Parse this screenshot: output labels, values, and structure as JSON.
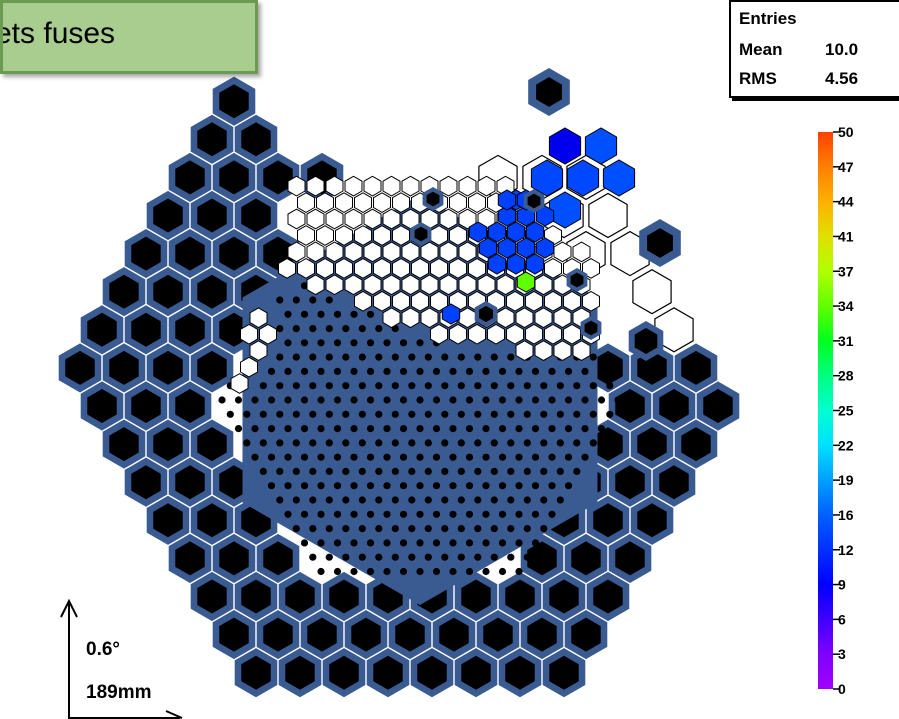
{
  "label": "ets fuses",
  "stats": {
    "entries_label": "Entries",
    "mean_label": "Mean",
    "mean_value": "10.0",
    "rms_label": "RMS",
    "rms_value": "4.56"
  },
  "scale": {
    "angle": "0.6°",
    "length": "189mm"
  },
  "colors": {
    "background": "#ffffff",
    "fused_frame": "#3a5a92",
    "fused_core": "#000000",
    "empty_cell": "#ffffff",
    "cell_outline": "#000000",
    "label_fill": "#a8cd8e"
  },
  "chart_data": {
    "type": "heatmap",
    "title": "",
    "zlim": [
      0,
      50
    ],
    "colorbar_ticks": [
      "50",
      "47",
      "44",
      "41",
      "37",
      "34",
      "31",
      "28",
      "25",
      "22",
      "19",
      "16",
      "12",
      "9",
      "6",
      "3",
      "0"
    ],
    "colorbar_colors": [
      "#ff4000",
      "#ff8000",
      "#ffb000",
      "#e0e000",
      "#b0ff00",
      "#60ff00",
      "#00ff20",
      "#00ff80",
      "#00ffd0",
      "#00e0ff",
      "#00a0ff",
      "#0060ff",
      "#0030ff",
      "#0000ff",
      "#4000ff",
      "#8000ff",
      "#a000ff"
    ],
    "highlighted_cells": [
      {
        "value": 8,
        "color": "#0000ee"
      },
      {
        "value": 12,
        "color": "#0050ff"
      },
      {
        "value": 11,
        "color": "#0048ff"
      },
      {
        "value": 11,
        "color": "#0048ff"
      },
      {
        "value": 12,
        "color": "#0050ff"
      },
      {
        "value": 12,
        "color": "#0050ff"
      },
      {
        "value": 10,
        "color": "#0040ff"
      },
      {
        "value": 10,
        "color": "#0040ff"
      },
      {
        "value": 10,
        "color": "#0040ff"
      },
      {
        "value": 10,
        "color": "#0040ff"
      },
      {
        "value": 10,
        "color": "#0040ff"
      },
      {
        "value": 10,
        "color": "#0040ff"
      },
      {
        "value": 10,
        "color": "#0040ff"
      },
      {
        "value": 10,
        "color": "#0040ff"
      },
      {
        "value": 10,
        "color": "#0040ff"
      },
      {
        "value": 10,
        "color": "#0040ff"
      },
      {
        "value": 10,
        "color": "#0040ff"
      },
      {
        "value": 10,
        "color": "#0040ff"
      },
      {
        "value": 10,
        "color": "#0040ff"
      },
      {
        "value": 10,
        "color": "#0040ff"
      },
      {
        "value": 10,
        "color": "#0040ff"
      },
      {
        "value": 10,
        "color": "#0040ff"
      },
      {
        "value": 10,
        "color": "#0040ff"
      },
      {
        "value": 33,
        "color": "#60ff00"
      },
      {
        "value": 10,
        "color": "#0040ff"
      }
    ]
  }
}
